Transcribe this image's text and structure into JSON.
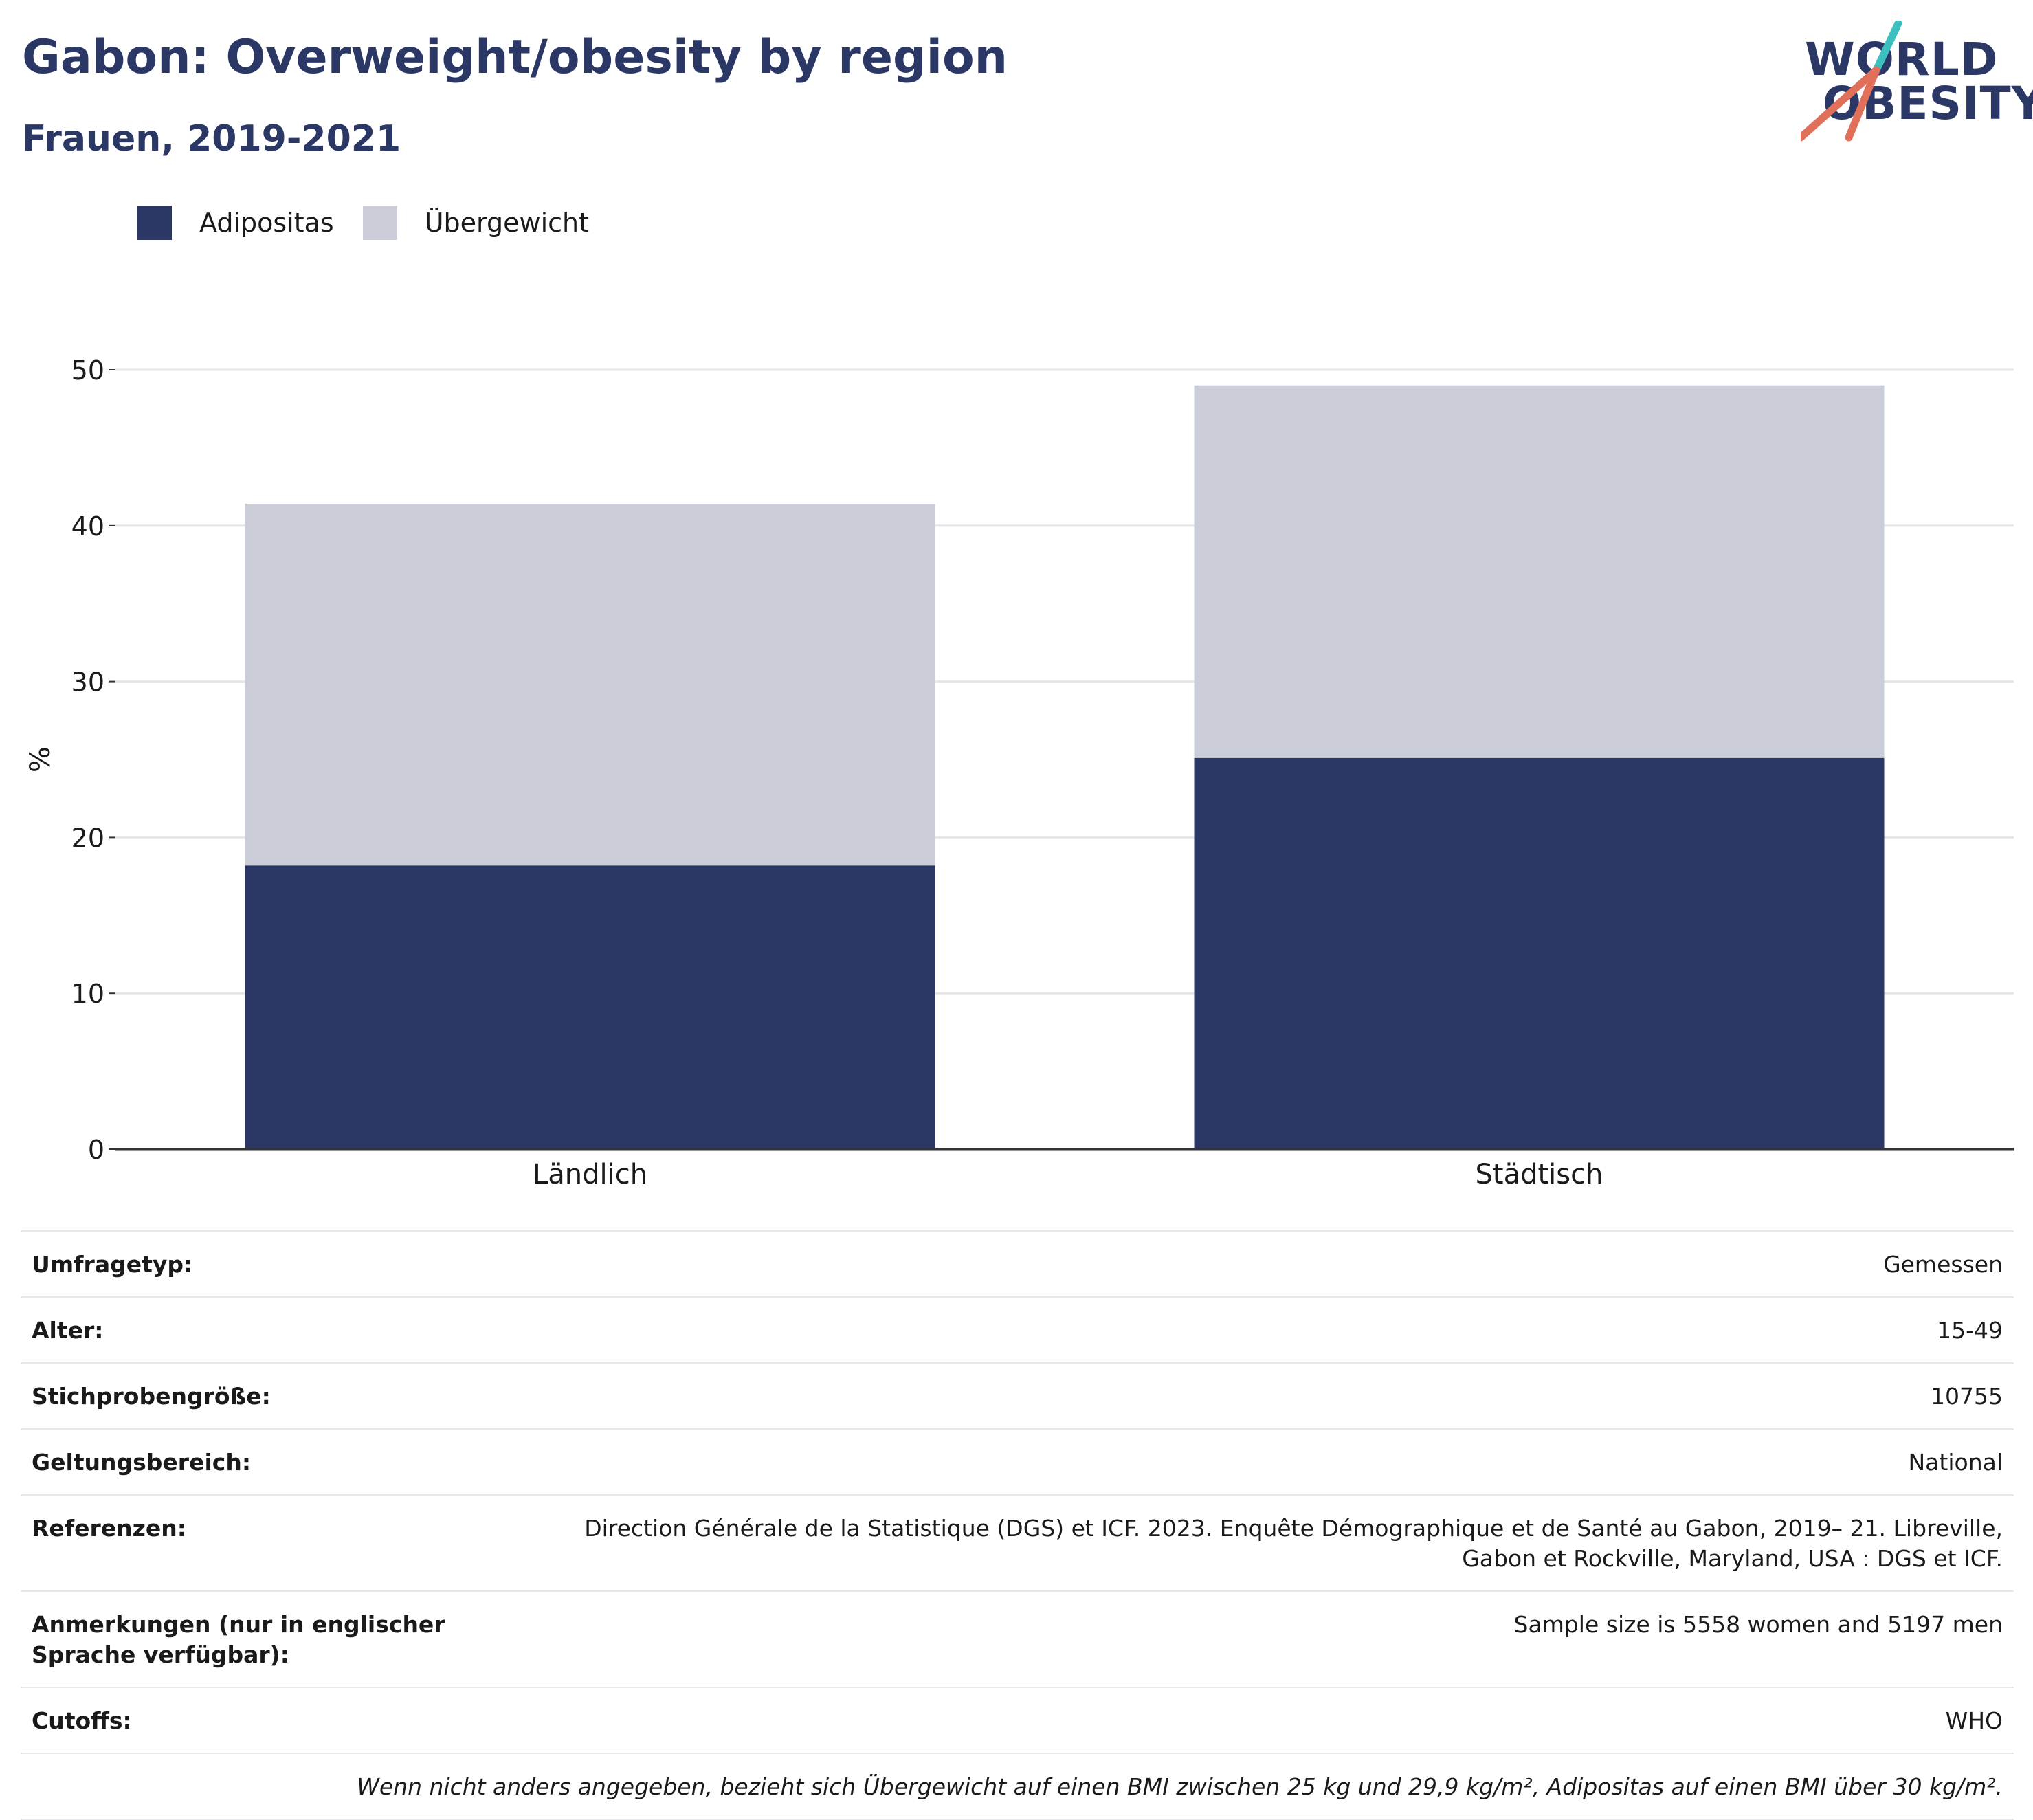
{
  "header": {
    "title": "Gabon: Overweight/obesity by region",
    "subtitle": "Frauen, 2019-2021"
  },
  "logo": {
    "line1": "WORLD",
    "line2": "OBESITY",
    "colors": [
      "#2b3866",
      "#3bbfbf",
      "#e0705a"
    ]
  },
  "legend": [
    {
      "label": "Adipositas",
      "color": "#2b3866"
    },
    {
      "label": "Übergewicht",
      "color": "#cbcdd8"
    }
  ],
  "chart_data": {
    "type": "bar",
    "stacked": true,
    "categories": [
      "Ländlich",
      "Städtisch"
    ],
    "series": [
      {
        "name": "Adipositas",
        "values": [
          18.2,
          25.1
        ],
        "color": "#2b3866"
      },
      {
        "name": "Übergewicht",
        "values": [
          23.2,
          23.9
        ],
        "color": "#cbcdd8"
      }
    ],
    "ylabel": "%",
    "ylim": [
      0,
      50
    ],
    "yticks": [
      0,
      10,
      20,
      30,
      40,
      50
    ],
    "grid": true,
    "legend_position": "top-left"
  },
  "meta": {
    "rows": [
      {
        "key": "Umfragetyp:",
        "value": "Gemessen"
      },
      {
        "key": "Alter:",
        "value": "15-49"
      },
      {
        "key": "Stichprobengröße:",
        "value": "10755"
      },
      {
        "key": "Geltungsbereich:",
        "value": "National"
      },
      {
        "key": "Referenzen:",
        "value": "Direction Générale de la Statistique (DGS) et ICF. 2023. Enquête Démographique et de Santé au Gabon, 2019– 21. Libreville, Gabon et Rockville, Maryland, USA : DGS et ICF."
      },
      {
        "key": "Anmerkungen (nur in englischer Sprache verfügbar):",
        "value": "Sample size is 5558 women and 5197 men"
      },
      {
        "key": "Cutoffs:",
        "value": "WHO"
      }
    ],
    "footnote": "Wenn nicht anders angegeben, bezieht sich Übergewicht auf einen BMI zwischen 25 kg und 29,9 kg/m², Adipositas auf einen BMI über 30 kg/m²."
  }
}
